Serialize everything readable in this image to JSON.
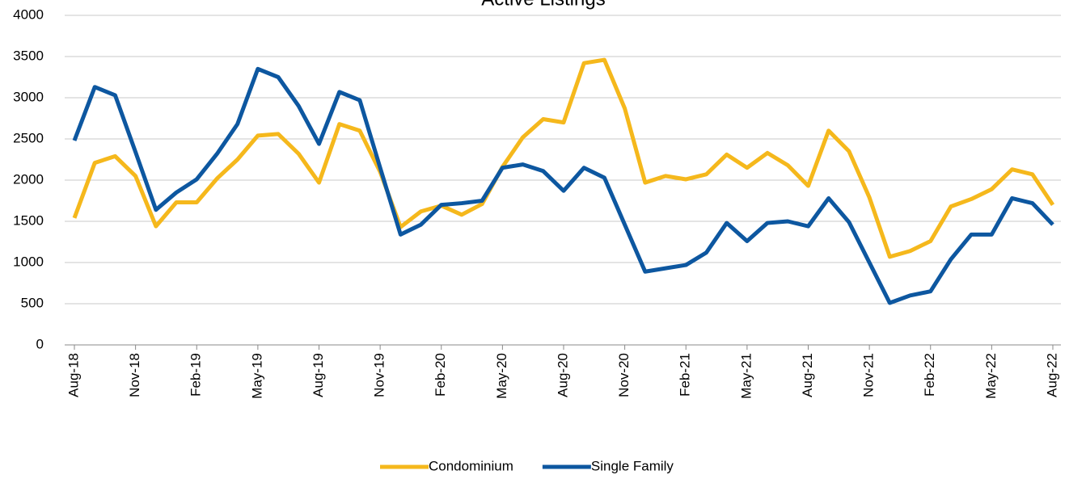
{
  "chart_data": {
    "type": "line",
    "title": "Active Listings",
    "categories": [
      "Aug-18",
      null,
      null,
      "Nov-18",
      null,
      null,
      "Feb-19",
      null,
      null,
      "May-19",
      null,
      null,
      "Aug-19",
      null,
      null,
      "Nov-19",
      null,
      null,
      "Feb-20",
      null,
      null,
      "May-20",
      null,
      null,
      "Aug-20",
      null,
      null,
      "Nov-20",
      null,
      null,
      "Feb-21",
      null,
      null,
      "May-21",
      null,
      null,
      "Aug-21",
      null,
      null,
      "Nov-21",
      null,
      null,
      "Feb-22",
      null,
      null,
      "May-22",
      null,
      null,
      "Aug-22"
    ],
    "series": [
      {
        "name": "Condominium",
        "color": "#f5b81c",
        "values": [
          1540,
          2210,
          2290,
          2050,
          1440,
          1730,
          1730,
          2020,
          2250,
          2540,
          2560,
          2320,
          1970,
          2680,
          2600,
          2100,
          1430,
          1620,
          1690,
          1580,
          1710,
          2160,
          2520,
          2740,
          2700,
          3420,
          3460,
          2870,
          1970,
          2050,
          2010,
          2070,
          2310,
          2150,
          2330,
          2180,
          1930,
          2600,
          2350,
          1790,
          1070,
          1140,
          1260,
          1680,
          1770,
          1890,
          2130,
          2070,
          1700
        ]
      },
      {
        "name": "Single Family",
        "color": "#0d57a0",
        "values": [
          2480,
          3130,
          3030,
          2340,
          1640,
          1850,
          2010,
          2320,
          2680,
          3350,
          3250,
          2900,
          2440,
          3070,
          2970,
          2150,
          1340,
          1460,
          1700,
          1720,
          1750,
          2150,
          2190,
          2110,
          1870,
          2150,
          2030,
          1460,
          890,
          930,
          970,
          1120,
          1480,
          1260,
          1480,
          1500,
          1440,
          1780,
          1490,
          1000,
          510,
          600,
          650,
          1040,
          1340,
          1340,
          1780,
          1720,
          1460
        ]
      }
    ],
    "ylim": [
      0,
      4000
    ],
    "yticks": [
      0,
      500,
      1000,
      1500,
      2000,
      2500,
      3000,
      3500,
      4000
    ],
    "grid": true,
    "legend": "bottom"
  }
}
